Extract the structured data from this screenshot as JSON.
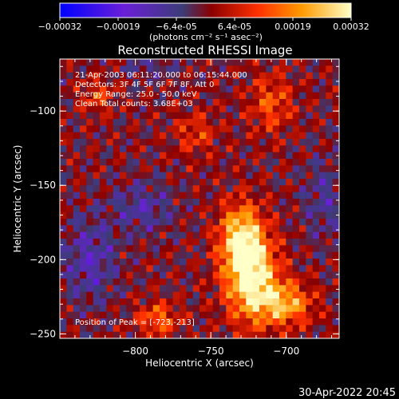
{
  "title": "Reconstructed RHESSI Image",
  "colorbar": {
    "ticks": [
      "-0.00032",
      "-0.00019",
      "-6.4e-05",
      "6.4e-05",
      "0.00019",
      "0.00032"
    ],
    "unit_label": "(photons cm⁻² s⁻¹ asec⁻²)"
  },
  "info": {
    "line1": "21-Apr-2003 06:11:20.000 to 06:15:44.000",
    "line2": "Detectors: 3F 4F 5F 6F 7F 8F, Att 0",
    "line3": "Energy Range: 25.0 - 50.0 keV",
    "line4": "Clean     Total counts: 3.68E+03"
  },
  "peak_label": "Position of Peak = [-723,-213]",
  "timestamp": "30-Apr-2022 20:45",
  "chart_data": {
    "type": "heatmap",
    "title": "Reconstructed RHESSI Image",
    "xlabel": "Heliocentric X (arcsec)",
    "ylabel": "Heliocentric Y (arcsec)",
    "xlim": [
      -850,
      -665
    ],
    "ylim": [
      -253,
      -65
    ],
    "xticks": [
      -800,
      -750,
      -700
    ],
    "yticks": [
      -100,
      -150,
      -200,
      -250
    ],
    "color_range": [
      -0.00032,
      0.00032
    ],
    "colormap": [
      "#0000ff",
      "#6a1fd8",
      "#3c3c78",
      "#8a0000",
      "#ff3000",
      "#ff9a00",
      "#ffffc8"
    ],
    "peak": [
      -723,
      -213
    ],
    "nx": 42,
    "ny": 42,
    "sources": [
      {
        "x": -723,
        "y": -213,
        "amp": 0.00032,
        "sx": 12,
        "sy": 20
      },
      {
        "x": -730,
        "y": -185,
        "amp": 0.00026,
        "sx": 10,
        "sy": 16
      },
      {
        "x": -700,
        "y": -230,
        "amp": 0.00022,
        "sx": 12,
        "sy": 10
      },
      {
        "x": -785,
        "y": -240,
        "amp": 0.00015,
        "sx": 10,
        "sy": 8
      },
      {
        "x": -710,
        "y": -95,
        "amp": 0.00013,
        "sx": 10,
        "sy": 14
      },
      {
        "x": -825,
        "y": -90,
        "amp": 0.00011,
        "sx": 8,
        "sy": 8
      },
      {
        "x": -760,
        "y": -115,
        "amp": 0.0001,
        "sx": 10,
        "sy": 10
      },
      {
        "x": -830,
        "y": -200,
        "amp": -0.00012,
        "sx": 12,
        "sy": 20
      },
      {
        "x": -795,
        "y": -165,
        "amp": -0.0001,
        "sx": 14,
        "sy": 12
      },
      {
        "x": -675,
        "y": -160,
        "amp": -8e-05,
        "sx": 10,
        "sy": 20
      },
      {
        "x": -790,
        "y": -70,
        "amp": -7e-05,
        "sx": 12,
        "sy": 6
      }
    ]
  }
}
